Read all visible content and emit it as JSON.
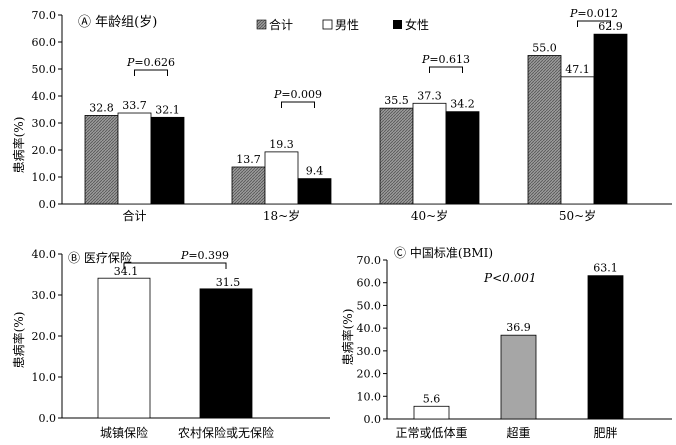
{
  "colors": {
    "total": "hatch-gray",
    "male": "#ffffff",
    "female": "#000000",
    "overweight": "#a6a6a6"
  },
  "chart_data": [
    {
      "id": "A",
      "type": "bar",
      "title": "Ⓐ 年龄组(岁)",
      "ylabel": "患病率(%)",
      "ylim": [
        0,
        70
      ],
      "yticks": [
        "0.0",
        "10.0",
        "20.0",
        "30.0",
        "40.0",
        "50.0",
        "60.0",
        "70.0"
      ],
      "categories": [
        "合计",
        "18~岁",
        "40~岁",
        "50~岁"
      ],
      "series": [
        {
          "name": "合计",
          "values": [
            32.8,
            13.7,
            35.5,
            55.0
          ],
          "labels": [
            "32.8",
            "13.7",
            "35.5",
            "55.0"
          ]
        },
        {
          "name": "男性",
          "values": [
            33.7,
            19.3,
            37.3,
            47.1
          ],
          "labels": [
            "33.7",
            "19.3",
            "37.3",
            "47.1"
          ]
        },
        {
          "name": "女性",
          "values": [
            32.1,
            9.4,
            34.2,
            62.9
          ],
          "labels": [
            "32.1",
            "9.4",
            "34.2",
            "62.9"
          ]
        }
      ],
      "legend": [
        "合计",
        "男性",
        "女性"
      ],
      "annotations": [
        "P=0.626",
        "P=0.009",
        "P=0.613",
        "P=0.012"
      ]
    },
    {
      "id": "B",
      "type": "bar",
      "title": "Ⓑ 医疗保险",
      "ylabel": "患病率(%)",
      "ylim": [
        0,
        40
      ],
      "yticks": [
        "0.0",
        "10.0",
        "20.0",
        "30.0",
        "40.0"
      ],
      "categories": [
        "城镇保险",
        "农村保险或无保险"
      ],
      "values": [
        34.1,
        31.5
      ],
      "labels": [
        "34.1",
        "31.5"
      ],
      "annotation": "P=0.399"
    },
    {
      "id": "C",
      "type": "bar",
      "title": "Ⓒ 中国标准(BMI)",
      "ylabel": "患病率(%)",
      "ylim": [
        0,
        70
      ],
      "yticks": [
        "0.0",
        "10.0",
        "20.0",
        "30.0",
        "40.0",
        "50.0",
        "60.0",
        "70.0"
      ],
      "categories": [
        "正常或低体重",
        "超重",
        "肥胖"
      ],
      "values": [
        5.6,
        36.9,
        63.1
      ],
      "labels": [
        "5.6",
        "36.9",
        "63.1"
      ],
      "annotation": "P<0.001"
    }
  ]
}
